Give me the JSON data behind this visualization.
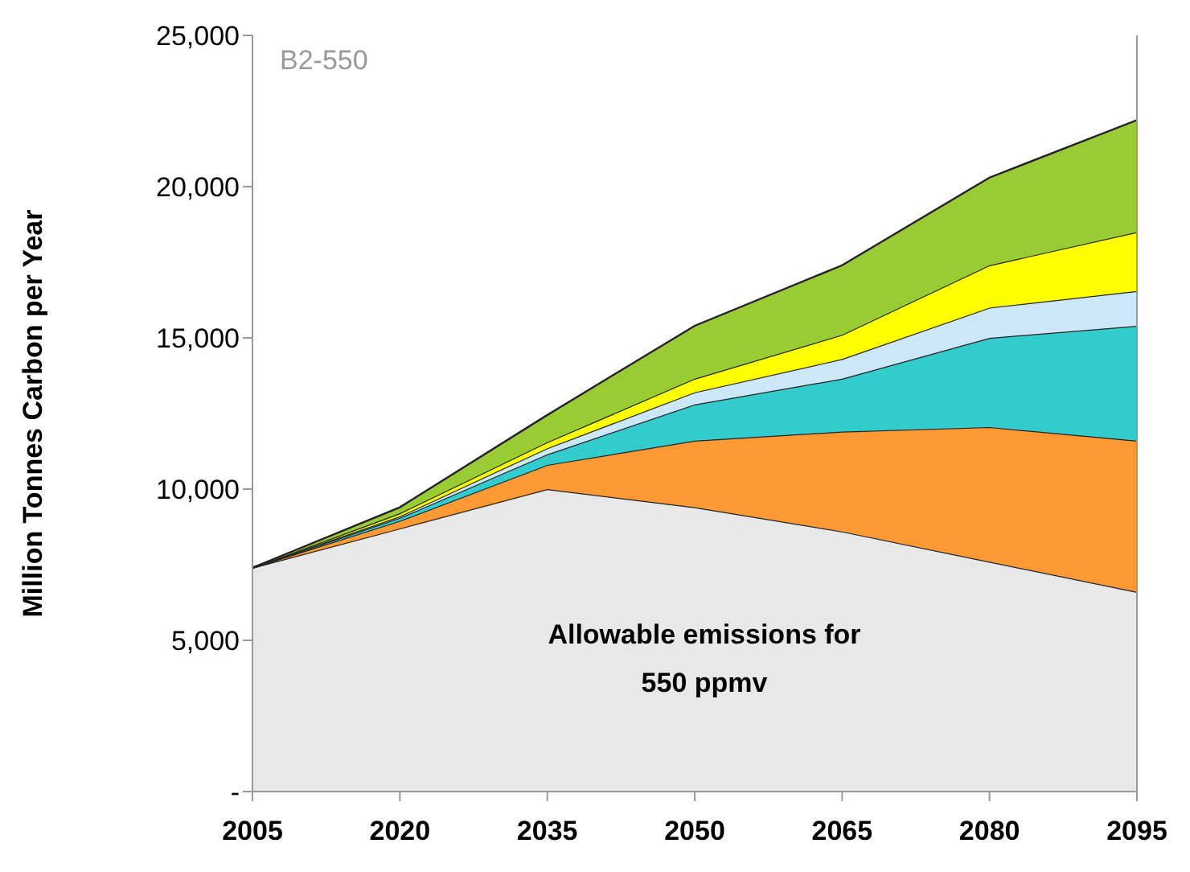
{
  "chart_data": {
    "type": "area",
    "title": "B2-550",
    "ylabel": "Million Tonnes Carbon per Year",
    "stacked": true,
    "x": [
      2005,
      2020,
      2035,
      2050,
      2065,
      2080,
      2095
    ],
    "xlim": [
      2005,
      2095
    ],
    "xticks": [
      2005,
      2020,
      2035,
      2050,
      2065,
      2080,
      2095
    ],
    "ylim": [
      0,
      25000
    ],
    "yticks": [
      {
        "value": 0,
        "label": "-"
      },
      {
        "value": 5000,
        "label": "5,000"
      },
      {
        "value": 10000,
        "label": "10,000"
      },
      {
        "value": 15000,
        "label": "15,000"
      },
      {
        "value": 20000,
        "label": "20,000"
      },
      {
        "value": 25000,
        "label": "25,000"
      }
    ],
    "series": [
      {
        "color": "#e8e8e8",
        "values": [
          7400,
          8700,
          10000,
          9400,
          8600,
          7600,
          6600
        ]
      },
      {
        "color": "#ff9933",
        "values": [
          0,
          250,
          800,
          2200,
          3300,
          4450,
          5000
        ]
      },
      {
        "color": "#33cccc",
        "values": [
          0,
          100,
          350,
          1200,
          1750,
          2950,
          3800
        ]
      },
      {
        "color": "#cce8f8",
        "values": [
          0,
          50,
          200,
          400,
          650,
          1000,
          1150
        ]
      },
      {
        "color": "#ffff00",
        "values": [
          0,
          100,
          200,
          450,
          800,
          1400,
          1950
        ]
      },
      {
        "color": "#99cc33",
        "values": [
          0,
          200,
          900,
          1750,
          2300,
          2900,
          3700
        ]
      }
    ],
    "annotations": [
      "Allowable emissions for\n550 ppmv"
    ]
  }
}
